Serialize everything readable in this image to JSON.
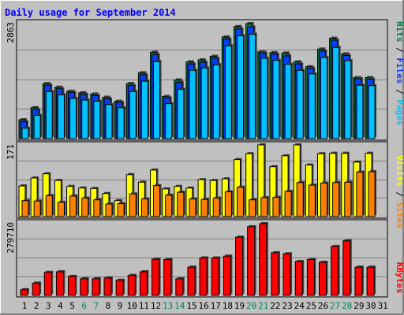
{
  "chart_data": [
    {
      "type": "bar",
      "title": "Daily usage for September 2014",
      "categories": [
        "1",
        "2",
        "3",
        "4",
        "5",
        "6",
        "7",
        "8",
        "9",
        "10",
        "11",
        "12",
        "13",
        "14",
        "15",
        "16",
        "17",
        "18",
        "19",
        "20",
        "21",
        "22",
        "23",
        "24",
        "25",
        "26",
        "27",
        "28",
        "29",
        "30",
        "31"
      ],
      "weekend_days": [
        "6",
        "7",
        "13",
        "14",
        "20",
        "21",
        "27",
        "28"
      ],
      "ylabel": [
        "Pages",
        "Files",
        "Hits"
      ],
      "y_tick": "2863",
      "ylim": [
        0,
        2863
      ],
      "grid": true,
      "series": [
        {
          "name": "Hits",
          "values": [
            470,
            770,
            1370,
            1280,
            1180,
            1140,
            1110,
            1030,
            930,
            1370,
            1640,
            2150,
            1050,
            1460,
            1910,
            1960,
            2050,
            2530,
            2790,
            2863,
            2160,
            2140,
            2130,
            1910,
            1790,
            2230,
            2500,
            2110,
            1520,
            1520,
            0
          ]
        },
        {
          "name": "Files",
          "values": [
            420,
            720,
            1330,
            1240,
            1150,
            1100,
            1070,
            990,
            900,
            1320,
            1590,
            2090,
            1010,
            1400,
            1860,
            1900,
            2000,
            2480,
            2730,
            2780,
            2130,
            2100,
            2060,
            1860,
            1750,
            2180,
            2450,
            2070,
            1490,
            1480,
            0
          ]
        },
        {
          "name": "Pages",
          "values": [
            260,
            580,
            1170,
            1090,
            1000,
            960,
            930,
            850,
            770,
            1170,
            1430,
            1920,
            870,
            1230,
            1700,
            1760,
            1840,
            2310,
            2560,
            2600,
            2000,
            1950,
            1850,
            1700,
            1610,
            2020,
            2270,
            1940,
            1330,
            1320,
            0
          ]
        }
      ],
      "colors": {
        "Hits": "#008040",
        "Files": "#0040ff",
        "Pages": "#00c0ff"
      }
    },
    {
      "type": "bar",
      "categories": [
        "1",
        "2",
        "3",
        "4",
        "5",
        "6",
        "7",
        "8",
        "9",
        "10",
        "11",
        "12",
        "13",
        "14",
        "15",
        "16",
        "17",
        "18",
        "19",
        "20",
        "21",
        "22",
        "23",
        "24",
        "25",
        "26",
        "27",
        "28",
        "29",
        "30",
        "31"
      ],
      "ylabel": [
        "Sites",
        "Visits"
      ],
      "y_tick": "171",
      "ylim": [
        0,
        171
      ],
      "grid": true,
      "series": [
        {
          "name": "Visits",
          "values": [
            73,
            92,
            102,
            86,
            72,
            68,
            67,
            55,
            38,
            100,
            82,
            111,
            66,
            72,
            68,
            88,
            86,
            90,
            136,
            150,
            171,
            119,
            145,
            171,
            123,
            150,
            151,
            151,
            130,
            151,
            0
          ]
        },
        {
          "name": "Sites",
          "values": [
            38,
            37,
            50,
            34,
            49,
            44,
            40,
            30,
            31,
            54,
            42,
            74,
            51,
            58,
            42,
            41,
            44,
            59,
            70,
            40,
            45,
            46,
            60,
            81,
            75,
            80,
            81,
            82,
            106,
            107,
            0
          ]
        }
      ],
      "colors": {
        "Visits": "#ffff00",
        "Sites": "#ff8000"
      }
    },
    {
      "type": "bar",
      "categories": [
        "1",
        "2",
        "3",
        "4",
        "5",
        "6",
        "7",
        "8",
        "9",
        "10",
        "11",
        "12",
        "13",
        "14",
        "15",
        "16",
        "17",
        "18",
        "19",
        "20",
        "21",
        "22",
        "23",
        "24",
        "25",
        "26",
        "27",
        "28",
        "29",
        "30",
        "31"
      ],
      "ylabel": [
        "KBytes"
      ],
      "y_tick": "279710",
      "ylim": [
        0,
        279710
      ],
      "grid": true,
      "series": [
        {
          "name": "KBytes",
          "values": [
            22000,
            48000,
            90000,
            92000,
            74000,
            65000,
            65000,
            68000,
            59000,
            78000,
            92000,
            141000,
            140000,
            65000,
            110000,
            146000,
            146000,
            153000,
            227000,
            268000,
            279710,
            166000,
            162000,
            132000,
            140000,
            129000,
            191000,
            213000,
            110000,
            110000,
            0
          ]
        }
      ],
      "colors": {
        "KBytes": "#ff0000"
      }
    }
  ]
}
